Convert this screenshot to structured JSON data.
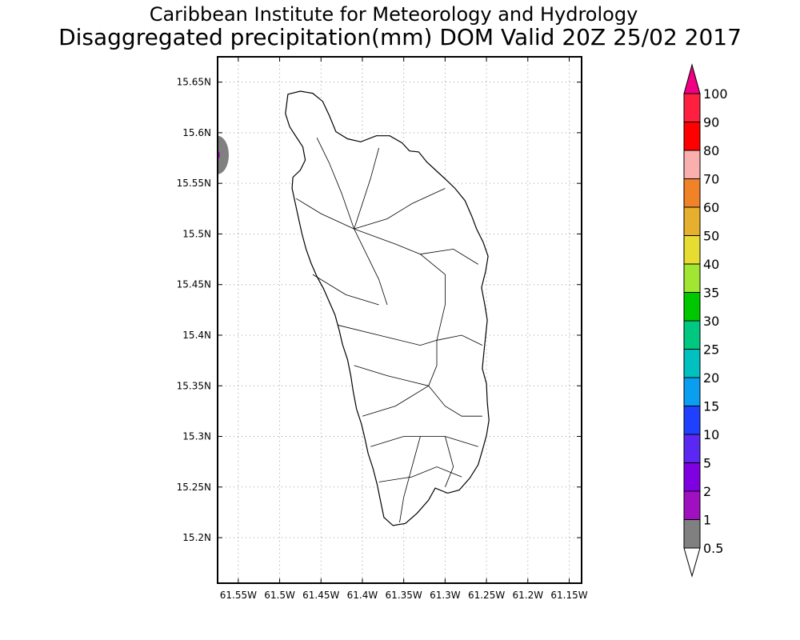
{
  "header": {
    "title_line1": "Caribbean Institute for Meteorology and Hydrology",
    "title_line2": "Disaggregated precipitation(mm) DOM Valid 20Z 25/02 2017"
  },
  "map": {
    "lon_range": [
      -61.575,
      -61.135
    ],
    "lat_range": [
      15.155,
      15.675
    ],
    "lat_ticks": [
      {
        "value": 15.65,
        "label": "15.65N"
      },
      {
        "value": 15.6,
        "label": "15.6N"
      },
      {
        "value": 15.55,
        "label": "15.55N"
      },
      {
        "value": 15.5,
        "label": "15.5N"
      },
      {
        "value": 15.45,
        "label": "15.45N"
      },
      {
        "value": 15.4,
        "label": "15.4N"
      },
      {
        "value": 15.35,
        "label": "15.35N"
      },
      {
        "value": 15.3,
        "label": "15.3N"
      },
      {
        "value": 15.25,
        "label": "15.25N"
      },
      {
        "value": 15.2,
        "label": "15.2N"
      }
    ],
    "lon_ticks": [
      {
        "value": -61.55,
        "label": "61.55W"
      },
      {
        "value": -61.5,
        "label": "61.5W"
      },
      {
        "value": -61.45,
        "label": "61.45W"
      },
      {
        "value": -61.4,
        "label": "61.4W"
      },
      {
        "value": -61.35,
        "label": "61.35W"
      },
      {
        "value": -61.3,
        "label": "61.3W"
      },
      {
        "value": -61.25,
        "label": "61.25W"
      },
      {
        "value": -61.2,
        "label": "61.2W"
      },
      {
        "value": -61.15,
        "label": "61.15W"
      }
    ],
    "grid": true,
    "coastline": [
      [
        -61.49,
        15.638
      ],
      [
        -61.475,
        15.641
      ],
      [
        -61.46,
        15.639
      ],
      [
        -61.448,
        15.631
      ],
      [
        -61.44,
        15.617
      ],
      [
        -61.432,
        15.601
      ],
      [
        -61.418,
        15.594
      ],
      [
        -61.402,
        15.591
      ],
      [
        -61.383,
        15.597
      ],
      [
        -61.367,
        15.597
      ],
      [
        -61.352,
        15.59
      ],
      [
        -61.343,
        15.582
      ],
      [
        -61.332,
        15.581
      ],
      [
        -61.322,
        15.571
      ],
      [
        -61.31,
        15.562
      ],
      [
        -61.298,
        15.553
      ],
      [
        -61.288,
        15.545
      ],
      [
        -61.276,
        15.533
      ],
      [
        -61.268,
        15.518
      ],
      [
        -61.262,
        15.505
      ],
      [
        -61.254,
        15.492
      ],
      [
        -61.248,
        15.478
      ],
      [
        -61.251,
        15.463
      ],
      [
        -61.256,
        15.447
      ],
      [
        -61.252,
        15.43
      ],
      [
        -61.249,
        15.415
      ],
      [
        -61.251,
        15.399
      ],
      [
        -61.253,
        15.384
      ],
      [
        -61.255,
        15.367
      ],
      [
        -61.25,
        15.352
      ],
      [
        -61.249,
        15.334
      ],
      [
        -61.247,
        15.316
      ],
      [
        -61.25,
        15.301
      ],
      [
        -61.255,
        15.286
      ],
      [
        -61.26,
        15.272
      ],
      [
        -61.27,
        15.259
      ],
      [
        -61.283,
        15.247
      ],
      [
        -61.297,
        15.244
      ],
      [
        -61.312,
        15.249
      ],
      [
        -61.32,
        15.237
      ],
      [
        -61.334,
        15.224
      ],
      [
        -61.348,
        15.214
      ],
      [
        -61.363,
        15.212
      ],
      [
        -61.374,
        15.22
      ],
      [
        -61.378,
        15.236
      ],
      [
        -61.382,
        15.252
      ],
      [
        -61.387,
        15.268
      ],
      [
        -61.393,
        15.283
      ],
      [
        -61.397,
        15.298
      ],
      [
        -61.401,
        15.312
      ],
      [
        -61.407,
        15.327
      ],
      [
        -61.411,
        15.344
      ],
      [
        -61.414,
        15.36
      ],
      [
        -61.418,
        15.376
      ],
      [
        -61.424,
        15.391
      ],
      [
        -61.428,
        15.405
      ],
      [
        -61.433,
        15.42
      ],
      [
        -61.44,
        15.433
      ],
      [
        -61.447,
        15.446
      ],
      [
        -61.455,
        15.458
      ],
      [
        -61.462,
        15.471
      ],
      [
        -61.468,
        15.485
      ],
      [
        -61.473,
        15.5
      ],
      [
        -61.477,
        15.515
      ],
      [
        -61.481,
        15.53
      ],
      [
        -61.485,
        15.545
      ],
      [
        -61.484,
        15.556
      ],
      [
        -61.475,
        15.563
      ],
      [
        -61.469,
        15.573
      ],
      [
        -61.472,
        15.586
      ],
      [
        -61.48,
        15.596
      ],
      [
        -61.488,
        15.606
      ],
      [
        -61.493,
        15.619
      ],
      [
        -61.49,
        15.638
      ]
    ],
    "rivers": [
      [
        [
          -61.455,
          15.595
        ],
        [
          -61.44,
          15.57
        ],
        [
          -61.425,
          15.54
        ],
        [
          -61.41,
          15.505
        ]
      ],
      [
        [
          -61.38,
          15.585
        ],
        [
          -61.39,
          15.555
        ],
        [
          -61.4,
          15.53
        ],
        [
          -61.41,
          15.505
        ]
      ],
      [
        [
          -61.3,
          15.545
        ],
        [
          -61.34,
          15.53
        ],
        [
          -61.37,
          15.515
        ],
        [
          -61.41,
          15.505
        ]
      ],
      [
        [
          -61.48,
          15.535
        ],
        [
          -61.45,
          15.52
        ],
        [
          -61.41,
          15.505
        ]
      ],
      [
        [
          -61.41,
          15.505
        ],
        [
          -61.395,
          15.48
        ],
        [
          -61.38,
          15.455
        ],
        [
          -61.37,
          15.43
        ]
      ],
      [
        [
          -61.41,
          15.505
        ],
        [
          -61.36,
          15.49
        ],
        [
          -61.33,
          15.48
        ]
      ],
      [
        [
          -61.33,
          15.48
        ],
        [
          -61.3,
          15.46
        ],
        [
          -61.3,
          15.43
        ],
        [
          -61.31,
          15.395
        ]
      ],
      [
        [
          -61.33,
          15.48
        ],
        [
          -61.29,
          15.485
        ],
        [
          -61.26,
          15.47
        ]
      ],
      [
        [
          -61.46,
          15.46
        ],
        [
          -61.42,
          15.44
        ],
        [
          -61.38,
          15.43
        ]
      ],
      [
        [
          -61.43,
          15.41
        ],
        [
          -61.38,
          15.4
        ],
        [
          -61.33,
          15.39
        ],
        [
          -61.31,
          15.395
        ]
      ],
      [
        [
          -61.31,
          15.395
        ],
        [
          -61.28,
          15.4
        ],
        [
          -61.255,
          15.39
        ]
      ],
      [
        [
          -61.31,
          15.395
        ],
        [
          -61.31,
          15.37
        ],
        [
          -61.32,
          15.35
        ]
      ],
      [
        [
          -61.41,
          15.37
        ],
        [
          -61.37,
          15.36
        ],
        [
          -61.32,
          15.35
        ]
      ],
      [
        [
          -61.32,
          15.35
        ],
        [
          -61.3,
          15.33
        ],
        [
          -61.28,
          15.32
        ],
        [
          -61.255,
          15.32
        ]
      ],
      [
        [
          -61.4,
          15.32
        ],
        [
          -61.36,
          15.33
        ],
        [
          -61.32,
          15.35
        ]
      ],
      [
        [
          -61.39,
          15.29
        ],
        [
          -61.35,
          15.3
        ],
        [
          -61.3,
          15.3
        ],
        [
          -61.26,
          15.29
        ]
      ],
      [
        [
          -61.33,
          15.3
        ],
        [
          -61.34,
          15.27
        ],
        [
          -61.35,
          15.24
        ],
        [
          -61.355,
          15.215
        ]
      ],
      [
        [
          -61.38,
          15.255
        ],
        [
          -61.34,
          15.26
        ],
        [
          -61.31,
          15.27
        ],
        [
          -61.28,
          15.26
        ]
      ],
      [
        [
          -61.3,
          15.3
        ],
        [
          -61.29,
          15.27
        ],
        [
          -61.3,
          15.25
        ]
      ]
    ],
    "precip_blob": {
      "lon": -61.575,
      "lat": 15.578,
      "value_band": "1"
    }
  },
  "colorbar": {
    "levels": [
      {
        "label": "0.5",
        "color": "#ffffff"
      },
      {
        "label": "1",
        "color": "#808080"
      },
      {
        "label": "2",
        "color": "#a010c0"
      },
      {
        "label": "5",
        "color": "#7f00e0"
      },
      {
        "label": "10",
        "color": "#5a28f0"
      },
      {
        "label": "15",
        "color": "#2040ff"
      },
      {
        "label": "20",
        "color": "#0a9ef0"
      },
      {
        "label": "25",
        "color": "#00c0c0"
      },
      {
        "label": "30",
        "color": "#00c880"
      },
      {
        "label": "35",
        "color": "#00c800"
      },
      {
        "label": "40",
        "color": "#a0e632"
      },
      {
        "label": "50",
        "color": "#e6dc32"
      },
      {
        "label": "60",
        "color": "#e6af2d"
      },
      {
        "label": "70",
        "color": "#f08228"
      },
      {
        "label": "80",
        "color": "#faafaf"
      },
      {
        "label": "90",
        "color": "#ff0000"
      },
      {
        "label": "100",
        "color": "#ff2040"
      }
    ],
    "top_color": "#f00082"
  }
}
